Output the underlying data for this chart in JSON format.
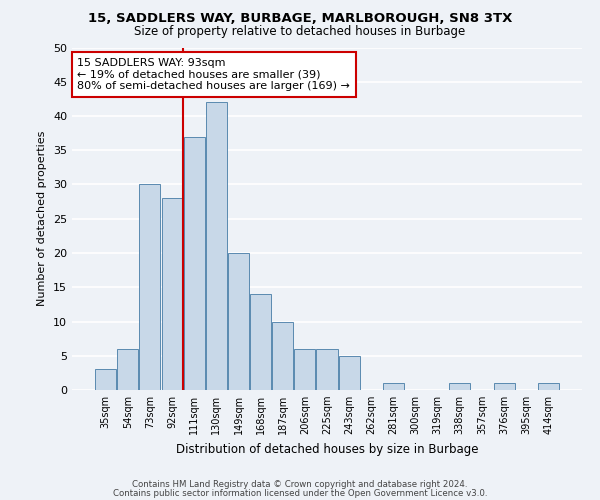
{
  "title1": "15, SADDLERS WAY, BURBAGE, MARLBOROUGH, SN8 3TX",
  "title2": "Size of property relative to detached houses in Burbage",
  "xlabel": "Distribution of detached houses by size in Burbage",
  "ylabel": "Number of detached properties",
  "categories": [
    "35sqm",
    "54sqm",
    "73sqm",
    "92sqm",
    "111sqm",
    "130sqm",
    "149sqm",
    "168sqm",
    "187sqm",
    "206sqm",
    "225sqm",
    "243sqm",
    "262sqm",
    "281sqm",
    "300sqm",
    "319sqm",
    "338sqm",
    "357sqm",
    "376sqm",
    "395sqm",
    "414sqm"
  ],
  "values": [
    3,
    6,
    30,
    28,
    37,
    42,
    20,
    14,
    10,
    6,
    6,
    5,
    0,
    1,
    0,
    0,
    1,
    0,
    1,
    0,
    1
  ],
  "bar_color": "#c8d8e8",
  "bar_edge_color": "#5a8ab0",
  "vline_color": "#cc0000",
  "annotation_text": "15 SADDLERS WAY: 93sqm\n← 19% of detached houses are smaller (39)\n80% of semi-detached houses are larger (169) →",
  "annotation_box_color": "#ffffff",
  "annotation_box_edge": "#cc0000",
  "footer1": "Contains HM Land Registry data © Crown copyright and database right 2024.",
  "footer2": "Contains public sector information licensed under the Open Government Licence v3.0.",
  "ylim": [
    0,
    50
  ],
  "yticks": [
    0,
    5,
    10,
    15,
    20,
    25,
    30,
    35,
    40,
    45,
    50
  ],
  "bg_color": "#eef2f7",
  "grid_color": "#ffffff",
  "vline_pos": 3.5
}
